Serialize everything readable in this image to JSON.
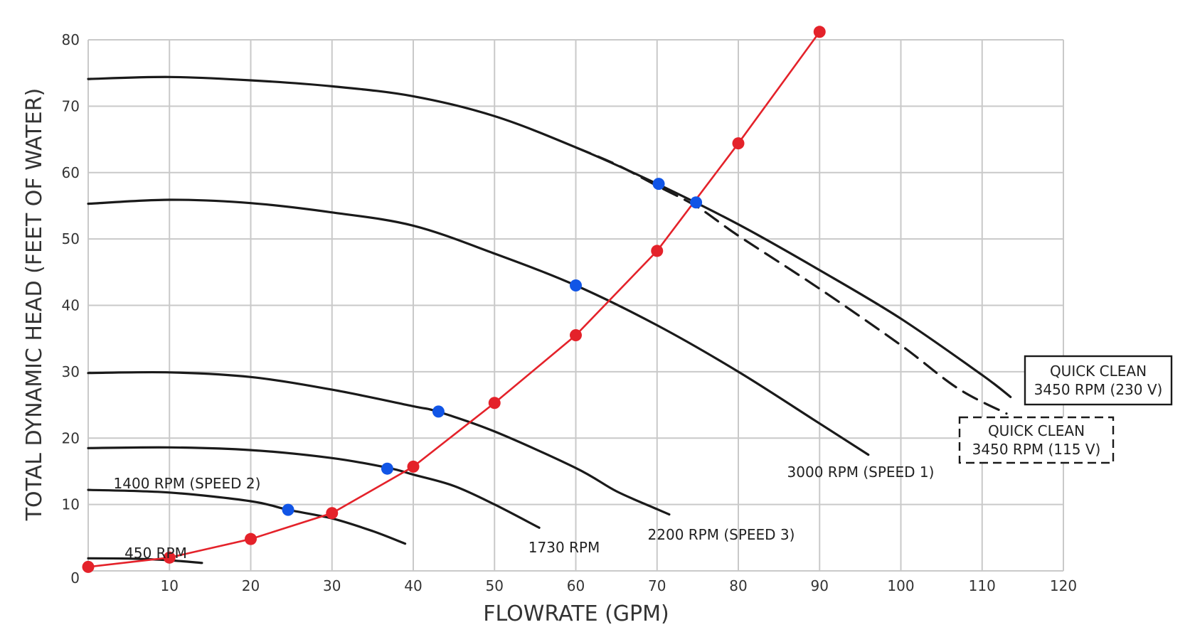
{
  "chart_data": {
    "type": "line",
    "title": "",
    "xlabel": "FLOWRATE (GPM)",
    "ylabel": "TOTAL DYNAMIC HEAD (FEET OF WATER)",
    "xlim": [
      0,
      120
    ],
    "ylim": [
      0,
      80
    ],
    "x_ticks": [
      10,
      20,
      30,
      40,
      50,
      60,
      70,
      80,
      90,
      100,
      110,
      120
    ],
    "y_ticks": [
      0,
      10,
      20,
      30,
      40,
      50,
      60,
      70,
      80
    ],
    "grid": true,
    "colors": {
      "pump_curve": "#1a1a1a",
      "system_curve": "#e4222a",
      "operating_point": "#1155e6",
      "grid": "#c9c9c9"
    },
    "series": [
      {
        "key": "s3450_230",
        "label_lines": [
          "QUICK CLEAN",
          "3450 RPM (230 V)"
        ],
        "style": "solid",
        "label_style": "box",
        "points": [
          [
            0,
            74.1
          ],
          [
            10,
            74.4
          ],
          [
            20,
            73.9
          ],
          [
            30,
            73
          ],
          [
            40,
            71.5
          ],
          [
            50,
            68.5
          ],
          [
            60,
            63.8
          ],
          [
            70,
            58.3
          ],
          [
            80,
            52.2
          ],
          [
            90,
            45.3
          ],
          [
            100,
            38
          ],
          [
            110,
            29.5
          ],
          [
            113.5,
            26.2
          ]
        ]
      },
      {
        "key": "s3450_115",
        "label_lines": [
          "QUICK CLEAN",
          "3450 RPM (115 V)"
        ],
        "style": "dashed",
        "label_style": "dashed-box",
        "points": [
          [
            60,
            63.8
          ],
          [
            65,
            61.2
          ],
          [
            70,
            58
          ],
          [
            75,
            54.8
          ],
          [
            80,
            50.5
          ],
          [
            90,
            42.5
          ],
          [
            100,
            34
          ],
          [
            107,
            27.5
          ],
          [
            113,
            23.7
          ]
        ]
      },
      {
        "key": "s3000",
        "label_lines": [
          "3000 RPM (SPEED 1)"
        ],
        "style": "solid",
        "label_style": "text",
        "points": [
          [
            0,
            55.3
          ],
          [
            10,
            55.9
          ],
          [
            20,
            55.4
          ],
          [
            30,
            54
          ],
          [
            40,
            52
          ],
          [
            50,
            47.8
          ],
          [
            60,
            43
          ],
          [
            70,
            37
          ],
          [
            80,
            30
          ],
          [
            90,
            22.2
          ],
          [
            96,
            17.5
          ]
        ]
      },
      {
        "key": "s2200",
        "label_lines": [
          "2200 RPM (SPEED 3)"
        ],
        "style": "solid",
        "label_style": "text",
        "points": [
          [
            0,
            29.8
          ],
          [
            10,
            29.9
          ],
          [
            20,
            29.2
          ],
          [
            30,
            27.3
          ],
          [
            40,
            24.8
          ],
          [
            43,
            24
          ],
          [
            50,
            21
          ],
          [
            60,
            15.5
          ],
          [
            65,
            12
          ],
          [
            70,
            9.3
          ],
          [
            71.5,
            8.5
          ]
        ]
      },
      {
        "key": "s1730",
        "label_lines": [
          "1730 RPM"
        ],
        "style": "solid",
        "label_style": "text",
        "points": [
          [
            0,
            18.5
          ],
          [
            10,
            18.6
          ],
          [
            20,
            18.2
          ],
          [
            30,
            17
          ],
          [
            37,
            15.5
          ],
          [
            40,
            14.5
          ],
          [
            45,
            12.8
          ],
          [
            50,
            10
          ],
          [
            55.5,
            6.5
          ]
        ]
      },
      {
        "key": "s1400",
        "label_lines": [
          "1400 RPM (SPEED 2)"
        ],
        "style": "solid",
        "label_style": "text",
        "points": [
          [
            0,
            12.2
          ],
          [
            10,
            11.8
          ],
          [
            20,
            10.5
          ],
          [
            24.6,
            9.2
          ],
          [
            30,
            7.9
          ],
          [
            35,
            6
          ],
          [
            39,
            4.1
          ]
        ]
      },
      {
        "key": "s450",
        "label_lines": [
          "450 RPM"
        ],
        "style": "solid",
        "label_style": "text",
        "points": [
          [
            0,
            1.9
          ],
          [
            5,
            1.85
          ],
          [
            10,
            1.6
          ],
          [
            14,
            1.2
          ]
        ]
      }
    ],
    "system_curve": {
      "points": [
        [
          0,
          0.6
        ],
        [
          10,
          2
        ],
        [
          20,
          4.8
        ],
        [
          30,
          8.7
        ],
        [
          40,
          15.7
        ],
        [
          50,
          25.3
        ],
        [
          60,
          35.5
        ],
        [
          70,
          48.2
        ],
        [
          80,
          64.4
        ],
        [
          90,
          81.2
        ]
      ]
    },
    "operating_points": [
      [
        24.6,
        9.2
      ],
      [
        36.8,
        15.4
      ],
      [
        43.1,
        24
      ],
      [
        60,
        43
      ],
      [
        70.2,
        58.3
      ],
      [
        74.8,
        55.5
      ]
    ]
  }
}
